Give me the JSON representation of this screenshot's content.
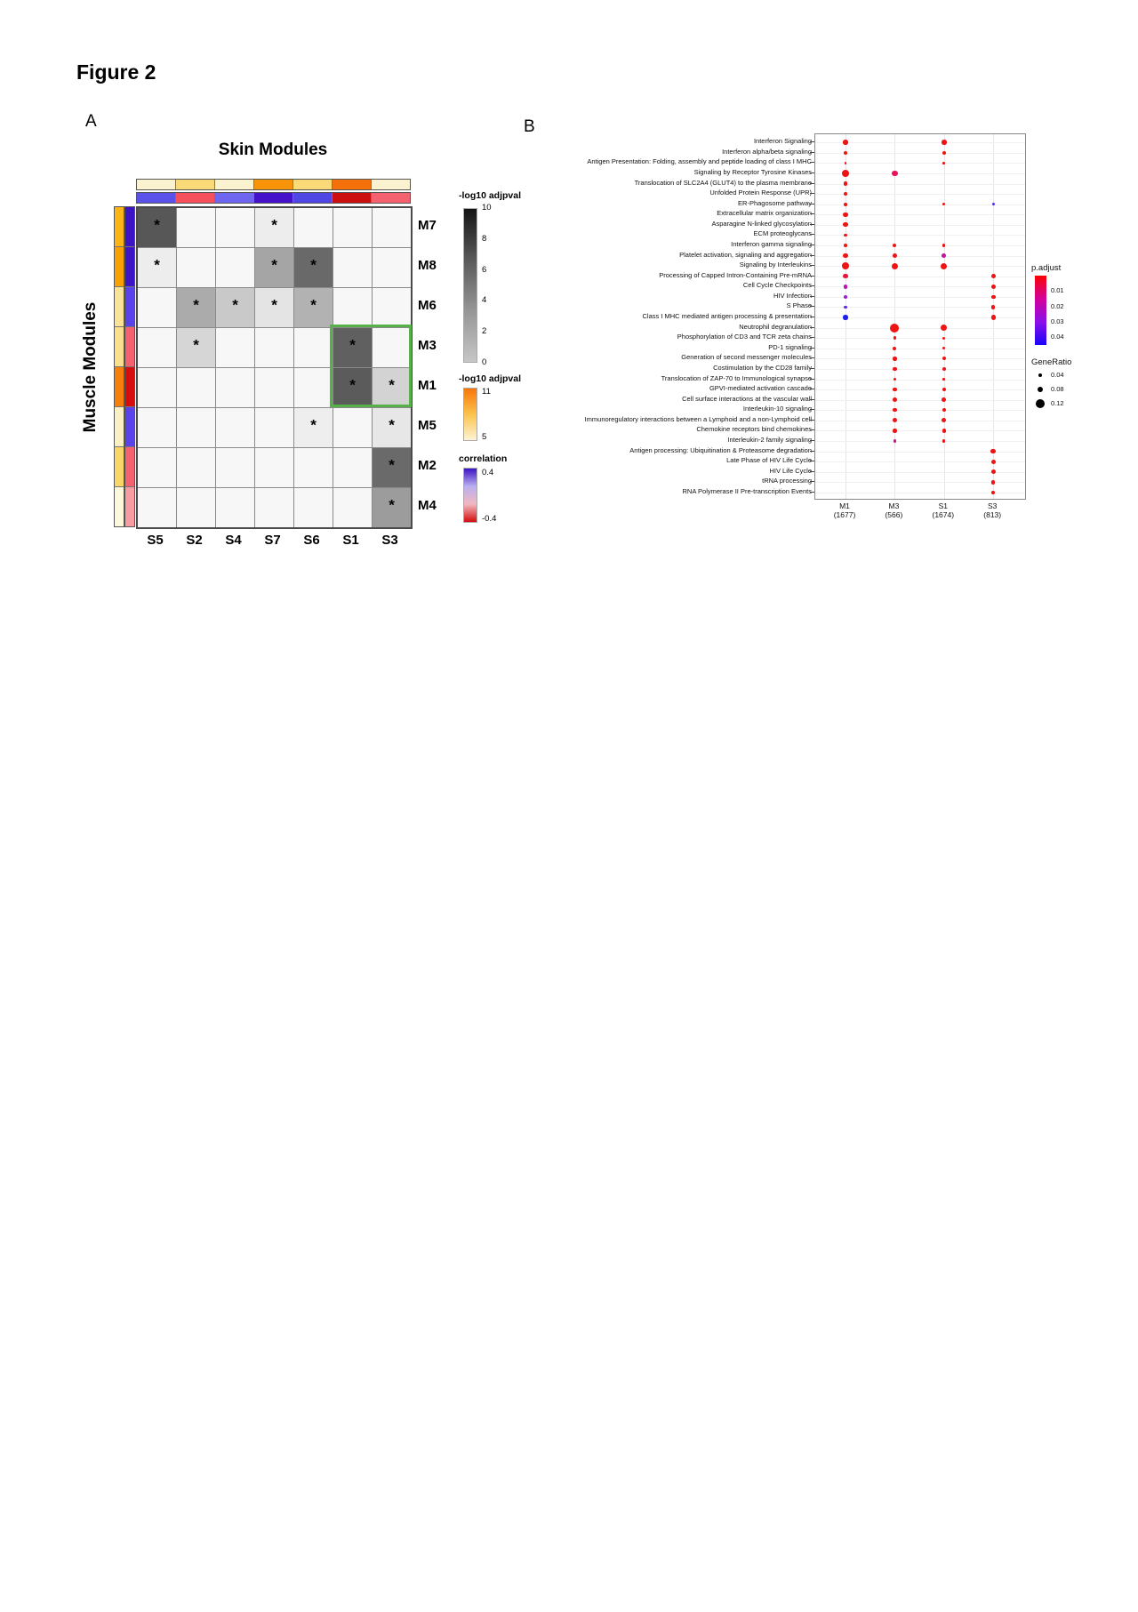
{
  "figure_title": "Figure 2",
  "chart_data": [
    {
      "type": "heatmap",
      "panel_label": "A",
      "title": "Skin Modules",
      "ylabel": "Muscle Modules",
      "columns": [
        "S5",
        "S2",
        "S4",
        "S7",
        "S6",
        "S1",
        "S3"
      ],
      "rows": [
        "M7",
        "M8",
        "M6",
        "M3",
        "M1",
        "M5",
        "M2",
        "M4"
      ],
      "value_scale": "-log10 adjpval (0-10, dark = high), * = significant",
      "empty_color": "#f7f7f7",
      "cells": [
        [
          [
            7,
            "#575757",
            1
          ],
          null,
          null,
          [
            1,
            "#ededed",
            1
          ],
          null,
          null,
          null
        ],
        [
          [
            1,
            "#ededed",
            1
          ],
          null,
          null,
          [
            4.5,
            "#a5a5a5",
            1
          ],
          [
            6.5,
            "#696969",
            1
          ],
          null,
          null
        ],
        [
          null,
          [
            4,
            "#ababab",
            1
          ],
          [
            3,
            "#c9c9c9",
            1
          ],
          [
            1.5,
            "#e4e4e4",
            1
          ],
          [
            4,
            "#b2b2b2",
            1
          ],
          null,
          null
        ],
        [
          null,
          [
            2.5,
            "#d6d6d6",
            1
          ],
          null,
          null,
          null,
          [
            7,
            "#606060",
            1
          ],
          null
        ],
        [
          null,
          null,
          null,
          null,
          null,
          [
            7,
            "#5b5b5b",
            1
          ],
          [
            2.5,
            "#d3d3d3",
            1
          ]
        ],
        [
          null,
          null,
          null,
          null,
          [
            1,
            "#eeeeee",
            1
          ],
          null,
          [
            1.5,
            "#e7e7e7",
            1
          ]
        ],
        [
          null,
          null,
          null,
          null,
          null,
          null,
          [
            6.5,
            "#6a6a6a",
            1
          ]
        ],
        [
          null,
          null,
          null,
          null,
          null,
          null,
          [
            5,
            "#9c9c9c",
            1
          ]
        ]
      ],
      "col_annotation_logp": [
        "#FBF3D0",
        "#FAD978",
        "#FBF3D0",
        "#F8940A",
        "#FAD978",
        "#F4700A",
        "#FBF3D0"
      ],
      "col_annotation_corr": [
        "#5B52EA",
        "#F4515C",
        "#6E66EE",
        "#4412C9",
        "#4F46E4",
        "#CC0F0F",
        "#F4616F"
      ],
      "row_annotation_logp": [
        "#FDB515",
        "#F9A002",
        "#FAE396",
        "#FADF8E",
        "#F87E0B",
        "#FBF0C4",
        "#FAD567",
        "#FDF8DC"
      ],
      "row_annotation_corr": [
        "#3D14C4",
        "#3D14C4",
        "#5A43E8",
        "#F4616F",
        "#D40D0D",
        "#5A43E8",
        "#F4616F",
        "#F79CA4"
      ],
      "highlight": {
        "cols": [
          "S1",
          "S3"
        ],
        "rows": [
          "M3",
          "M1"
        ],
        "color": "#56B148"
      },
      "legends": [
        {
          "title": "-log10 adjpval",
          "ticks": [
            "10",
            "8",
            "6",
            "4",
            "2",
            "0"
          ],
          "gradient": [
            "#141414",
            "#5a5a5a",
            "#969696",
            "#c6c6c6"
          ]
        },
        {
          "title": "-log10 adjpval",
          "ticks": [
            "11",
            "5"
          ],
          "gradient": [
            "#F8760A",
            "#FBC34C",
            "#FDF3D3"
          ]
        },
        {
          "title": "correlation",
          "ticks": [
            "0.4",
            "-0.4"
          ],
          "gradient": [
            "#3D14C4",
            "#b9b0f0",
            "#f2b7c0",
            "#D40D0D"
          ]
        }
      ]
    },
    {
      "type": "scatter",
      "panel_label": "B",
      "categories": [
        {
          "name": "M1",
          "count": "(1677)"
        },
        {
          "name": "M3",
          "count": "(566)"
        },
        {
          "name": "S1",
          "count": "(1674)"
        },
        {
          "name": "S3",
          "count": "(813)"
        }
      ],
      "pathways": [
        "Interferon Signaling",
        "Interferon alpha/beta signaling",
        "Antigen Presentation: Folding, assembly and peptide loading of class I MHC",
        "Signaling by Receptor Tyrosine Kinases",
        "Translocation of SLC2A4 (GLUT4) to the plasma membrane",
        "Unfolded Protein Response (UPR)",
        "ER-Phagosome pathway",
        "Extracellular matrix organization",
        "Asparagine N-linked glycosylation",
        "ECM proteoglycans",
        "Interferon gamma signaling",
        "Platelet activation, signaling and aggregation",
        "Signaling by Interleukins",
        "Processing of Capped Intron-Containing Pre-mRNA",
        "Cell Cycle Checkpoints",
        "HIV Infection",
        "S Phase",
        "Class I MHC mediated antigen processing & presentation",
        "Neutrophil degranulation",
        "Phosphorylation of CD3 and TCR zeta chains",
        "PD-1 signaling",
        "Generation of second messenger molecules",
        "Costimulation by the CD28 family",
        "Translocation of ZAP-70 to Immunological synapse",
        "GPVI-mediated activation cascade",
        "Cell surface interactions at the vascular wall",
        "Interleukin-10 signaling",
        "Immunoregulatory interactions between a Lymphoid and a non-Lymphoid cell",
        "Chemokine receptors bind chemokines",
        "Interleukin-2 family signaling",
        "Antigen processing: Ubiquitination & Proteasome degradation",
        "Late Phase of HIV Life Cycle",
        "HIV Life Cycle",
        "tRNA processing",
        "RNA Polymerase II Pre-transcription Events"
      ],
      "matrix": [
        [
          [
            0.06,
            "#EE1414"
          ],
          null,
          [
            0.06,
            "#EE1414"
          ],
          null
        ],
        [
          [
            0.045,
            "#EE1414"
          ],
          null,
          [
            0.045,
            "#EE1414"
          ],
          null
        ],
        [
          [
            0.02,
            "#EE1414"
          ],
          null,
          [
            0.02,
            "#EE1414"
          ],
          null
        ],
        [
          [
            0.1,
            "#EE1414"
          ],
          [
            0.07,
            "#E8125E"
          ],
          null,
          null
        ],
        [
          [
            0.045,
            "#EE1414"
          ],
          null,
          null,
          null
        ],
        [
          [
            0.045,
            "#EE1414"
          ],
          null,
          null,
          null
        ],
        [
          [
            0.035,
            "#EE1414"
          ],
          null,
          [
            0.025,
            "#EE1414"
          ],
          [
            0.03,
            "#4530EE"
          ]
        ],
        [
          [
            0.06,
            "#EE1414"
          ],
          null,
          null,
          null
        ],
        [
          [
            0.055,
            "#EE1414"
          ],
          null,
          null,
          null
        ],
        [
          [
            0.035,
            "#EE1414"
          ],
          null,
          null,
          null
        ],
        [
          [
            0.035,
            "#EE1414"
          ],
          [
            0.04,
            "#EE1414"
          ],
          [
            0.03,
            "#EE1414"
          ],
          null
        ],
        [
          [
            0.055,
            "#EE1414"
          ],
          [
            0.055,
            "#EE1414"
          ],
          [
            0.05,
            "#C317A2"
          ],
          null
        ],
        [
          [
            0.1,
            "#EE1414"
          ],
          [
            0.085,
            "#EE1414"
          ],
          [
            0.085,
            "#EE1414"
          ],
          null
        ],
        [
          [
            0.055,
            "#EC1338"
          ],
          null,
          null,
          [
            0.055,
            "#EE1414"
          ]
        ],
        [
          [
            0.05,
            "#BB17B0"
          ],
          null,
          null,
          [
            0.055,
            "#EE1414"
          ]
        ],
        [
          [
            0.045,
            "#9D1DD0"
          ],
          null,
          null,
          [
            0.05,
            "#EE1414"
          ]
        ],
        [
          [
            0.035,
            "#5F2BE8"
          ],
          null,
          null,
          [
            0.045,
            "#EE1414"
          ]
        ],
        [
          [
            0.055,
            "#1E1EF0"
          ],
          null,
          null,
          [
            0.055,
            "#EE1414"
          ]
        ],
        [
          null,
          [
            0.12,
            "#EE1414"
          ],
          [
            0.08,
            "#EE1414"
          ],
          null
        ],
        [
          null,
          [
            0.035,
            "#EE1414"
          ],
          [
            0.03,
            "#EE1414"
          ],
          null
        ],
        [
          null,
          [
            0.04,
            "#EE1414"
          ],
          [
            0.03,
            "#EE1414"
          ],
          null
        ],
        [
          null,
          [
            0.045,
            "#EE1414"
          ],
          [
            0.04,
            "#EE1414"
          ],
          null
        ],
        [
          null,
          [
            0.045,
            "#EE1414"
          ],
          [
            0.04,
            "#EE1414"
          ],
          null
        ],
        [
          null,
          [
            0.035,
            "#EE1414"
          ],
          [
            0.02,
            "#EE1414"
          ],
          null
        ],
        [
          null,
          [
            0.045,
            "#EE1414"
          ],
          [
            0.04,
            "#EE1414"
          ],
          null
        ],
        [
          null,
          [
            0.055,
            "#EE1414"
          ],
          [
            0.05,
            "#EE1414"
          ],
          null
        ],
        [
          null,
          [
            0.045,
            "#EE1414"
          ],
          [
            0.045,
            "#EE1414"
          ],
          null
        ],
        [
          null,
          [
            0.055,
            "#EE1414"
          ],
          [
            0.055,
            "#EE1414"
          ],
          null
        ],
        [
          null,
          [
            0.045,
            "#EE1414"
          ],
          [
            0.045,
            "#EE1414"
          ],
          null
        ],
        [
          null,
          [
            0.035,
            "#D6128C"
          ],
          [
            0.03,
            "#EE1414"
          ],
          null
        ],
        [
          null,
          null,
          null,
          [
            0.06,
            "#EE1414"
          ]
        ],
        [
          null,
          null,
          null,
          [
            0.055,
            "#EE1414"
          ]
        ],
        [
          null,
          null,
          null,
          [
            0.055,
            "#EE1414"
          ]
        ],
        [
          null,
          null,
          null,
          [
            0.045,
            "#EE1414"
          ]
        ],
        [
          null,
          null,
          null,
          [
            0.035,
            "#EE1414"
          ]
        ]
      ],
      "legend_p": {
        "title": "p.adjust",
        "ticks": [
          "0.01",
          "0.02",
          "0.03",
          "0.04"
        ],
        "gradient": [
          "#FB0202",
          "#D4009B",
          "#8A10E8",
          "#1A04F8"
        ]
      },
      "legend_size": {
        "title": "GeneRatio",
        "items": [
          {
            "label": "0.04",
            "value": 0.04
          },
          {
            "label": "0.08",
            "value": 0.08
          },
          {
            "label": "0.12",
            "value": 0.12
          }
        ]
      }
    }
  ]
}
